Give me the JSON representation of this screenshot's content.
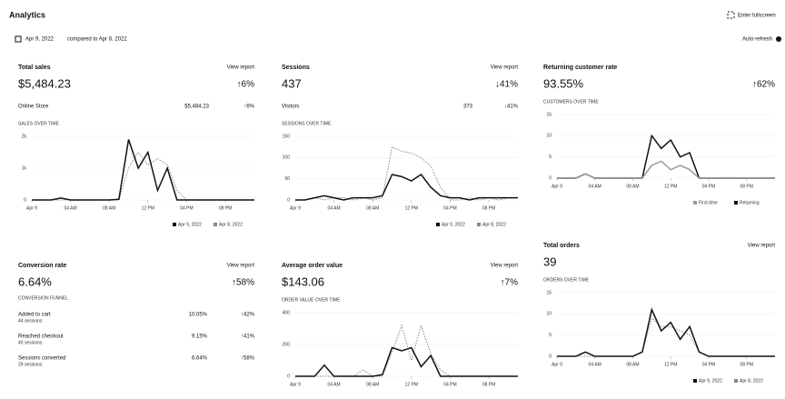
{
  "header": {
    "title": "Analytics",
    "fullscreen": "Enter fullscreen",
    "date": "Apr 9, 2022",
    "compared": "compared to Apr 8, 2022",
    "refresh": "Auto-refresh"
  },
  "cards": [
    {
      "title": "Total sales",
      "link": "View report",
      "value": "$5,484.23",
      "change": "↑6%",
      "rows": [
        [
          "Online Store",
          "$5,484.23",
          "↑6%"
        ]
      ],
      "chart": {
        "type": "line",
        "title": "SALES OVER TIME",
        "xlim": [
          0,
          23
        ],
        "ylim": [
          0,
          2000
        ],
        "yticks": [
          0,
          {
            "value": 1000,
            "label": "1k"
          },
          {
            "value": 2000,
            "label": "2k"
          }
        ],
        "xticks": [
          {
            "value": 0,
            "label": "Apr 9"
          },
          {
            "value": 4,
            "label": "04 AM"
          },
          {
            "value": 8,
            "label": "08 AM"
          },
          {
            "value": 12,
            "label": "12 PM"
          },
          {
            "value": 16,
            "label": "04 PM"
          },
          {
            "value": 20,
            "label": "08 PM"
          }
        ],
        "legend": true,
        "series": [
          {
            "name": "Apr 9, 2022",
            "color": "#111",
            "values": [
              0,
              0,
              0,
              60,
              0,
              0,
              0,
              0,
              0,
              20,
              1900,
              1000,
              1500,
              300,
              1000,
              0,
              0,
              0,
              0,
              0,
              0,
              0,
              0,
              0
            ]
          },
          {
            "name": "Apr 8, 2022",
            "color": "#888",
            "dashed": true,
            "values": [
              0,
              0,
              0,
              0,
              0,
              0,
              0,
              0,
              0,
              0,
              1000,
              1500,
              1100,
              1300,
              1100,
              300,
              0,
              0,
              0,
              0,
              0,
              0,
              0,
              0
            ]
          }
        ]
      }
    },
    {
      "title": "Sessions",
      "link": "View report",
      "value": "437",
      "change": "↓41%",
      "rows": [
        [
          "Visitors",
          "373",
          "↓41%"
        ]
      ],
      "chart": {
        "type": "line",
        "title": "SESSIONS OVER TIME",
        "xlim": [
          0,
          23
        ],
        "ylim": [
          0,
          150
        ],
        "yticks": [
          0,
          50,
          100,
          150
        ],
        "xticks": [
          {
            "value": 0,
            "label": "Apr 9"
          },
          {
            "value": 4,
            "label": "04 AM"
          },
          {
            "value": 8,
            "label": "08 AM"
          },
          {
            "value": 12,
            "label": "12 PM"
          },
          {
            "value": 16,
            "label": "04 PM"
          },
          {
            "value": 20,
            "label": "08 PM"
          }
        ],
        "legend": true,
        "series": [
          {
            "name": "Apr 9, 2022",
            "color": "#111",
            "values": [
              0,
              0,
              5,
              10,
              5,
              0,
              5,
              5,
              5,
              10,
              60,
              55,
              45,
              60,
              30,
              10,
              5,
              5,
              0,
              5,
              5,
              5,
              5,
              5
            ]
          },
          {
            "name": "Apr 8, 2022",
            "color": "#888",
            "dashed": true,
            "values": [
              0,
              0,
              5,
              0,
              5,
              5,
              0,
              5,
              0,
              5,
              125,
              115,
              110,
              100,
              80,
              30,
              0,
              0,
              5,
              0,
              5,
              0,
              5,
              5
            ]
          }
        ]
      }
    },
    {
      "title": "Returning customer rate",
      "value": "93.55%",
      "change": "↑62%",
      "chart": {
        "type": "line",
        "title": "CUSTOMERS OVER TIME",
        "xlim": [
          0,
          23
        ],
        "ylim": [
          0,
          15
        ],
        "yticks": [
          0,
          5,
          10,
          15
        ],
        "xticks": [
          {
            "value": 0,
            "label": "Apr 9"
          },
          {
            "value": 4,
            "label": "04 AM"
          },
          {
            "value": 8,
            "label": "08 AM"
          },
          {
            "value": 12,
            "label": "12 PM"
          },
          {
            "value": 16,
            "label": "04 PM"
          },
          {
            "value": 20,
            "label": "08 PM"
          }
        ],
        "legend": true,
        "series": [
          {
            "name": "First-time",
            "color": "#999",
            "values": [
              0,
              0,
              0,
              1,
              0,
              0,
              0,
              0,
              0,
              0,
              3,
              4,
              2,
              3,
              2,
              0,
              0,
              0,
              0,
              0,
              0,
              0,
              0,
              0
            ]
          },
          {
            "name": "Returning",
            "color": "#111",
            "values": [
              0,
              0,
              0,
              1,
              0,
              0,
              0,
              0,
              0,
              0,
              10,
              7,
              9,
              5,
              6,
              0,
              0,
              0,
              0,
              0,
              0,
              0,
              0,
              0
            ]
          }
        ]
      }
    },
    {
      "title": "Conversion rate",
      "link": "View report",
      "value": "6.64%",
      "change": "↑58%",
      "funnel": {
        "title": "CONVERSION FUNNEL",
        "steps": [
          {
            "label": "Added to cart",
            "sessions": "44 sessions",
            "rate": "10.05%",
            "change": "↑42%"
          },
          {
            "label": "Reached checkout",
            "sessions": "40 sessions",
            "rate": "9.15%",
            "change": "↑41%"
          },
          {
            "label": "Sessions converted",
            "sessions": "29 sessions",
            "rate": "6.64%",
            "change": "↑58%"
          }
        ]
      }
    },
    {
      "title": "Average order value",
      "link": "View report",
      "value": "$143.06",
      "change": "↑7%",
      "chart": {
        "type": "line",
        "title": "ORDER VALUE OVER TIME",
        "xlim": [
          0,
          23
        ],
        "ylim": [
          0,
          400
        ],
        "yticks": [
          0,
          200,
          400
        ],
        "xticks": [
          {
            "value": 0,
            "label": "Apr 9"
          },
          {
            "value": 4,
            "label": "04 AM"
          },
          {
            "value": 8,
            "label": "08 AM"
          },
          {
            "value": 12,
            "label": "12 PM"
          },
          {
            "value": 16,
            "label": "04 PM"
          },
          {
            "value": 20,
            "label": "08 PM"
          }
        ],
        "legend": false,
        "series": [
          {
            "name": "Apr 9, 2022",
            "color": "#111",
            "values": [
              0,
              0,
              0,
              70,
              0,
              0,
              0,
              0,
              0,
              10,
              180,
              160,
              180,
              60,
              130,
              0,
              0,
              0,
              0,
              0,
              0,
              0,
              0,
              0
            ]
          },
          {
            "name": "Apr 8, 2022",
            "color": "#888",
            "dashed": true,
            "values": [
              0,
              0,
              0,
              0,
              0,
              0,
              0,
              40,
              0,
              0,
              150,
              320,
              100,
              320,
              140,
              40,
              0,
              0,
              0,
              0,
              0,
              0,
              0,
              0
            ]
          }
        ]
      }
    },
    {
      "title": "Total orders",
      "link": "View report",
      "value": "39",
      "chart": {
        "type": "line",
        "title": "ORDERS OVER TIME",
        "xlim": [
          0,
          23
        ],
        "ylim": [
          0,
          15
        ],
        "yticks": [
          0,
          5,
          10,
          15
        ],
        "xticks": [
          {
            "value": 0,
            "label": "Apr 9"
          },
          {
            "value": 4,
            "label": "04 AM"
          },
          {
            "value": 8,
            "label": "08 AM"
          },
          {
            "value": 12,
            "label": "12 PM"
          },
          {
            "value": 16,
            "label": "04 PM"
          },
          {
            "value": 20,
            "label": "08 PM"
          }
        ],
        "legend": true,
        "series": [
          {
            "name": "Apr 9, 2022",
            "color": "#111",
            "values": [
              0,
              0,
              0,
              1,
              0,
              0,
              0,
              0,
              0,
              1,
              11,
              6,
              8,
              4,
              7,
              1,
              0,
              0,
              0,
              0,
              0,
              0,
              0,
              0
            ]
          },
          {
            "name": "Apr 8, 2022",
            "color": "#888",
            "dashed": true,
            "values": [
              0,
              0,
              0,
              0,
              0,
              0,
              0,
              0,
              0,
              1,
              9,
              7,
              7,
              6,
              5,
              1,
              0,
              0,
              0,
              0,
              0,
              0,
              0,
              0
            ]
          }
        ]
      }
    }
  ]
}
